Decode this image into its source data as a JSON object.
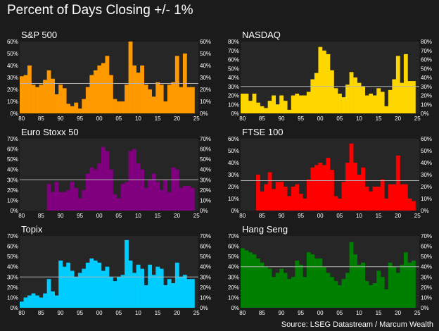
{
  "title": "Percent of Days Closing +/- 1%",
  "source": "Source: LSEG Datastream / Marcum Wealth",
  "colors": {
    "background": "#1b1b1b",
    "plot_bg": "#262626",
    "reference_line": "#b4b4b4"
  },
  "chart_data": [
    {
      "type": "bar",
      "title": "S&P 500",
      "color": "#ff9900",
      "x": [
        1980,
        1981,
        1982,
        1983,
        1984,
        1985,
        1986,
        1987,
        1988,
        1989,
        1990,
        1991,
        1992,
        1993,
        1994,
        1995,
        1996,
        1997,
        1998,
        1999,
        2000,
        2001,
        2002,
        2003,
        2004,
        2005,
        2006,
        2007,
        2008,
        2009,
        2010,
        2011,
        2012,
        2013,
        2014,
        2015,
        2016,
        2017,
        2018,
        2019,
        2020,
        2021,
        2022,
        2023,
        2024
      ],
      "values": [
        31,
        32,
        40,
        24,
        22,
        24,
        28,
        36,
        29,
        16,
        24,
        21,
        8,
        6,
        9,
        4,
        12,
        22,
        32,
        36,
        40,
        42,
        48,
        32,
        12,
        10,
        10,
        24,
        60,
        40,
        34,
        40,
        24,
        20,
        14,
        26,
        24,
        10,
        24,
        26,
        48,
        22,
        50,
        22,
        22
      ],
      "ylim": [
        0,
        60
      ],
      "yticks": [
        "0%",
        "10%",
        "20%",
        "30%",
        "40%",
        "50%",
        "60%"
      ],
      "xticks": [
        "80",
        "85",
        "90",
        "95",
        "00",
        "05",
        "10",
        "15",
        "20",
        "25"
      ],
      "reference_value": 25
    },
    {
      "type": "bar",
      "title": "NASDAQ",
      "color": "#ffd700",
      "x": [
        1980,
        1981,
        1982,
        1983,
        1984,
        1985,
        1986,
        1987,
        1988,
        1989,
        1990,
        1991,
        1992,
        1993,
        1994,
        1995,
        1996,
        1997,
        1998,
        1999,
        2000,
        2001,
        2002,
        2003,
        2004,
        2005,
        2006,
        2007,
        2008,
        2009,
        2010,
        2011,
        2012,
        2013,
        2014,
        2015,
        2016,
        2017,
        2018,
        2019,
        2020,
        2021,
        2022,
        2023,
        2024
      ],
      "values": [
        22,
        22,
        14,
        22,
        12,
        8,
        6,
        14,
        20,
        10,
        20,
        14,
        4,
        20,
        22,
        20,
        20,
        24,
        38,
        45,
        74,
        70,
        66,
        48,
        28,
        22,
        18,
        32,
        46,
        40,
        34,
        30,
        20,
        22,
        20,
        28,
        24,
        8,
        26,
        38,
        64,
        34,
        66,
        36,
        36
      ],
      "ylim": [
        0,
        80
      ],
      "yticks": [
        "0%",
        "10%",
        "20%",
        "30%",
        "40%",
        "50%",
        "60%",
        "70%",
        "80%"
      ],
      "xticks": [
        "80",
        "85",
        "90",
        "95",
        "00",
        "05",
        "10",
        "15",
        "20",
        "25"
      ],
      "reference_value": 30
    },
    {
      "type": "bar",
      "title": "Euro Stoxx 50",
      "color": "#800080",
      "x": [
        1987,
        1988,
        1989,
        1990,
        1991,
        1992,
        1993,
        1994,
        1995,
        1996,
        1997,
        1998,
        1999,
        2000,
        2001,
        2002,
        2003,
        2004,
        2005,
        2006,
        2007,
        2008,
        2009,
        2010,
        2011,
        2012,
        2013,
        2014,
        2015,
        2016,
        2017,
        2018,
        2019,
        2020,
        2021,
        2022,
        2023,
        2024
      ],
      "values": [
        26,
        18,
        28,
        18,
        18,
        20,
        28,
        22,
        12,
        20,
        36,
        42,
        40,
        46,
        62,
        58,
        40,
        16,
        12,
        26,
        28,
        58,
        60,
        46,
        40,
        22,
        30,
        36,
        28,
        20,
        30,
        18,
        42,
        40,
        22,
        24,
        24,
        22
      ],
      "ylim": [
        0,
        70
      ],
      "yticks": [
        "0%",
        "10%",
        "20%",
        "30%",
        "40%",
        "50%",
        "60%",
        "70%"
      ],
      "xticks": [
        "80",
        "85",
        "90",
        "95",
        "00",
        "05",
        "10",
        "15",
        "20",
        "25"
      ],
      "reference_value": 30
    },
    {
      "type": "bar",
      "title": "FTSE 100",
      "color": "#ff0000",
      "x": [
        1984,
        1985,
        1986,
        1987,
        1988,
        1989,
        1990,
        1991,
        1992,
        1993,
        1994,
        1995,
        1996,
        1997,
        1998,
        1999,
        2000,
        2001,
        2002,
        2003,
        2004,
        2005,
        2006,
        2007,
        2008,
        2009,
        2010,
        2011,
        2012,
        2013,
        2014,
        2015,
        2016,
        2017,
        2018,
        2019,
        2020,
        2021,
        2022,
        2023,
        2024
      ],
      "values": [
        30,
        16,
        22,
        32,
        18,
        24,
        24,
        20,
        12,
        20,
        22,
        14,
        10,
        26,
        36,
        38,
        40,
        38,
        44,
        34,
        12,
        10,
        24,
        40,
        56,
        40,
        30,
        36,
        20,
        16,
        20,
        20,
        26,
        10,
        22,
        22,
        46,
        22,
        22,
        10,
        8
      ],
      "ylim": [
        0,
        60
      ],
      "yticks": [
        "0%",
        "10%",
        "20%",
        "30%",
        "40%",
        "50%",
        "60%"
      ],
      "xticks": [
        "80",
        "85",
        "90",
        "95",
        "00",
        "05",
        "10",
        "15",
        "20",
        "25"
      ],
      "reference_value": 25
    },
    {
      "type": "bar",
      "title": "Topix",
      "color": "#00ccff",
      "x": [
        1980,
        1981,
        1982,
        1983,
        1984,
        1985,
        1986,
        1987,
        1988,
        1989,
        1990,
        1991,
        1992,
        1993,
        1994,
        1995,
        1996,
        1997,
        1998,
        1999,
        2000,
        2001,
        2002,
        2003,
        2004,
        2005,
        2006,
        2007,
        2008,
        2009,
        2010,
        2011,
        2012,
        2013,
        2014,
        2015,
        2016,
        2017,
        2018,
        2019,
        2020,
        2021,
        2022,
        2023,
        2024
      ],
      "values": [
        6,
        10,
        12,
        14,
        12,
        10,
        14,
        28,
        16,
        12,
        46,
        40,
        44,
        36,
        30,
        34,
        38,
        44,
        48,
        46,
        44,
        36,
        40,
        30,
        26,
        30,
        32,
        66,
        46,
        34,
        42,
        38,
        22,
        42,
        32,
        40,
        38,
        22,
        28,
        24,
        44,
        30,
        32,
        28,
        28
      ],
      "ylim": [
        0,
        70
      ],
      "yticks": [
        "0%",
        "10%",
        "20%",
        "30%",
        "40%",
        "50%",
        "60%",
        "70%"
      ],
      "xticks": [
        "80",
        "85",
        "90",
        "95",
        "00",
        "05",
        "10",
        "15",
        "20",
        "25"
      ],
      "reference_value": 30
    },
    {
      "type": "bar",
      "title": "Hang Seng",
      "color": "#008000",
      "x": [
        1980,
        1981,
        1982,
        1983,
        1984,
        1985,
        1986,
        1987,
        1988,
        1989,
        1990,
        1991,
        1992,
        1993,
        1994,
        1995,
        1996,
        1997,
        1998,
        1999,
        2000,
        2001,
        2002,
        2003,
        2004,
        2005,
        2006,
        2007,
        2008,
        2009,
        2010,
        2011,
        2012,
        2013,
        2014,
        2015,
        2016,
        2017,
        2018,
        2019,
        2020,
        2021,
        2022,
        2023,
        2024
      ],
      "values": [
        58,
        56,
        54,
        52,
        48,
        44,
        40,
        38,
        30,
        34,
        38,
        34,
        28,
        30,
        46,
        42,
        30,
        54,
        52,
        48,
        48,
        40,
        34,
        30,
        26,
        22,
        28,
        34,
        64,
        52,
        42,
        44,
        26,
        22,
        24,
        36,
        30,
        18,
        44,
        40,
        34,
        42,
        54,
        44,
        46
      ],
      "ylim": [
        0,
        70
      ],
      "yticks": [
        "0%",
        "10%",
        "20%",
        "30%",
        "40%",
        "50%",
        "60%",
        "70%"
      ],
      "xticks": [
        "80",
        "85",
        "90",
        "95",
        "00",
        "05",
        "10",
        "15",
        "20",
        "25"
      ],
      "reference_value": 40
    }
  ]
}
